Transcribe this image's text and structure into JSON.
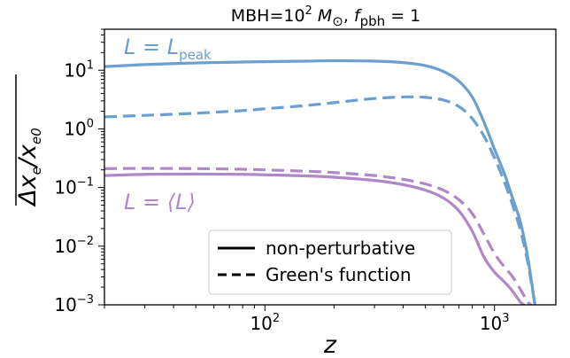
{
  "chart_data": {
    "type": "line",
    "title": {
      "prefix": "MBH=10",
      "exp": "2",
      "m": "M",
      "sun": "⊙",
      "sep": ",  ",
      "f": "f",
      "f_sub": "pbh",
      "eq": " = 1"
    },
    "xlabel": "z",
    "ylabel": {
      "delta_x": "Δx",
      "e": "e",
      "slash": "/x",
      "e0": "e0"
    },
    "xscale": "log",
    "yscale": "log",
    "xlim": [
      20,
      1850
    ],
    "ylim": [
      0.001,
      50
    ],
    "x_ticks": [
      {
        "value": 100,
        "base": "10",
        "exp": "2"
      },
      {
        "value": 1000,
        "base": "10",
        "exp": "3"
      }
    ],
    "y_ticks": [
      {
        "value": 10,
        "base": "10",
        "exp": "1"
      },
      {
        "value": 1,
        "base": "10",
        "exp": "0"
      },
      {
        "value": 0.1,
        "base": "10",
        "exp": "−1"
      },
      {
        "value": 0.01,
        "base": "10",
        "exp": "−2"
      },
      {
        "value": 0.001,
        "base": "10",
        "exp": "−3"
      }
    ],
    "annotations": [
      {
        "id": "peak",
        "text": "L = L",
        "sub": "peak",
        "color": "#6b9fcf"
      },
      {
        "id": "mean",
        "text": "L = ⟨L⟩",
        "color": "#b088c8"
      }
    ],
    "legend": {
      "position": "lower-center",
      "entries": [
        {
          "label": "non-perturbative",
          "style": "solid"
        },
        {
          "label": "Green's function",
          "style": "dashed"
        }
      ]
    },
    "series": [
      {
        "color": "#6b9fcf",
        "style": "solid",
        "x": [
          20,
          30,
          50,
          80,
          100,
          150,
          200,
          300,
          400,
          500,
          600,
          700,
          800,
          900,
          1000,
          1100,
          1200,
          1300,
          1400,
          1500
        ],
        "y": [
          11.5,
          12.5,
          13.3,
          13.8,
          14.0,
          14.3,
          14.5,
          14.3,
          13.5,
          12.0,
          9.5,
          6.5,
          3.5,
          1.3,
          0.45,
          0.18,
          0.065,
          0.025,
          0.006,
          0.001
        ]
      },
      {
        "color": "#6b9fcf",
        "style": "dashed",
        "x": [
          20,
          30,
          50,
          80,
          100,
          150,
          200,
          300,
          400,
          450,
          500,
          600,
          700,
          800,
          900,
          1000,
          1100,
          1200,
          1300,
          1400,
          1500
        ],
        "y": [
          1.6,
          1.7,
          1.85,
          2.05,
          2.2,
          2.5,
          2.8,
          3.3,
          3.5,
          3.5,
          3.45,
          3.1,
          2.4,
          1.5,
          0.75,
          0.32,
          0.13,
          0.05,
          0.018,
          0.005,
          0.001
        ]
      },
      {
        "color": "#b088c8",
        "style": "solid",
        "x": [
          20,
          30,
          50,
          80,
          100,
          150,
          200,
          300,
          400,
          500,
          600,
          700,
          800,
          900,
          1000,
          1100,
          1200,
          1300,
          1350
        ],
        "y": [
          0.16,
          0.168,
          0.17,
          0.168,
          0.165,
          0.158,
          0.15,
          0.132,
          0.112,
          0.09,
          0.066,
          0.04,
          0.018,
          0.0065,
          0.0036,
          0.0025,
          0.0017,
          0.0011,
          0.001
        ]
      },
      {
        "color": "#b088c8",
        "style": "dashed",
        "x": [
          20,
          30,
          50,
          80,
          100,
          150,
          200,
          300,
          400,
          500,
          600,
          700,
          800,
          900,
          1000,
          1100,
          1200,
          1300,
          1400,
          1450
        ],
        "y": [
          0.21,
          0.212,
          0.21,
          0.205,
          0.2,
          0.19,
          0.18,
          0.16,
          0.138,
          0.115,
          0.09,
          0.062,
          0.036,
          0.016,
          0.0075,
          0.0045,
          0.003,
          0.0018,
          0.0011,
          0.001
        ]
      }
    ]
  }
}
